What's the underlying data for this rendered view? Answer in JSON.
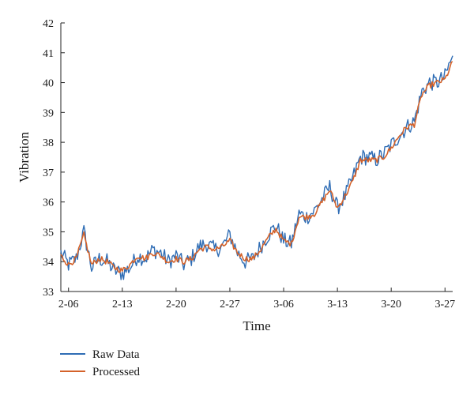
{
  "chart_data": {
    "type": "line",
    "title": "",
    "xlabel": "Time",
    "ylabel": "Vibration",
    "ylim": [
      33,
      42
    ],
    "yticks": [
      33,
      34,
      35,
      36,
      37,
      38,
      39,
      40,
      41,
      42
    ],
    "xlim": [
      "2-05",
      "3-28"
    ],
    "xticks": [
      "2-06",
      "2-13",
      "2-20",
      "2-27",
      "3-06",
      "3-13",
      "3-20",
      "3-27"
    ],
    "grid": false,
    "legend_position": "bottom-left",
    "series": [
      {
        "name": "Raw Data",
        "color": "#2F6DB5",
        "x": [
          "2-05",
          "2-06",
          "2-07",
          "2-08",
          "2-09",
          "2-10",
          "2-11",
          "2-12",
          "2-13",
          "2-14",
          "2-15",
          "2-16",
          "2-17",
          "2-18",
          "2-19",
          "2-20",
          "2-21",
          "2-22",
          "2-23",
          "2-24",
          "2-25",
          "2-26",
          "2-27",
          "2-28",
          "3-01",
          "3-02",
          "3-03",
          "3-04",
          "3-05",
          "3-06",
          "3-07",
          "3-08",
          "3-09",
          "3-10",
          "3-11",
          "3-12",
          "3-13",
          "3-14",
          "3-15",
          "3-16",
          "3-17",
          "3-18",
          "3-19",
          "3-20",
          "3-21",
          "3-22",
          "3-23",
          "3-24",
          "3-25",
          "3-26",
          "3-27",
          "3-28"
        ],
        "values": [
          34.3,
          33.9,
          34.1,
          35.0,
          33.8,
          34.1,
          34.0,
          33.7,
          33.6,
          33.8,
          34.2,
          34.1,
          34.4,
          34.3,
          34.0,
          34.2,
          33.9,
          34.1,
          34.5,
          34.6,
          34.4,
          34.5,
          34.9,
          34.3,
          34.0,
          34.1,
          34.5,
          34.9,
          35.2,
          34.7,
          34.6,
          35.6,
          35.5,
          35.7,
          36.1,
          36.5,
          35.8,
          36.2,
          36.8,
          37.5,
          37.5,
          37.4,
          37.6,
          37.9,
          38.2,
          38.5,
          38.7,
          39.7,
          40.0,
          40.0,
          40.2,
          40.9
        ]
      },
      {
        "name": "Processed",
        "color": "#D4622A",
        "x": [
          "2-05",
          "2-06",
          "2-07",
          "2-08",
          "2-09",
          "2-10",
          "2-11",
          "2-12",
          "2-13",
          "2-14",
          "2-15",
          "2-16",
          "2-17",
          "2-18",
          "2-19",
          "2-20",
          "2-21",
          "2-22",
          "2-23",
          "2-24",
          "2-25",
          "2-26",
          "2-27",
          "2-28",
          "3-01",
          "3-02",
          "3-03",
          "3-04",
          "3-05",
          "3-06",
          "3-07",
          "3-08",
          "3-09",
          "3-10",
          "3-11",
          "3-12",
          "3-13",
          "3-14",
          "3-15",
          "3-16",
          "3-17",
          "3-18",
          "3-19",
          "3-20",
          "3-21",
          "3-22",
          "3-23",
          "3-24",
          "3-25",
          "3-26",
          "3-27",
          "3-28"
        ],
        "values": [
          34.2,
          33.9,
          34.1,
          34.9,
          33.9,
          34.1,
          34.0,
          33.8,
          33.7,
          33.9,
          34.2,
          34.1,
          34.3,
          34.2,
          34.0,
          34.1,
          34.0,
          34.1,
          34.4,
          34.5,
          34.4,
          34.5,
          34.7,
          34.3,
          34.1,
          34.1,
          34.4,
          34.8,
          35.1,
          34.7,
          34.6,
          35.5,
          35.5,
          35.6,
          36.0,
          36.4,
          35.8,
          36.2,
          36.7,
          37.4,
          37.4,
          37.4,
          37.5,
          37.8,
          38.2,
          38.5,
          38.6,
          39.6,
          39.9,
          40.0,
          40.1,
          40.7
        ]
      }
    ]
  }
}
